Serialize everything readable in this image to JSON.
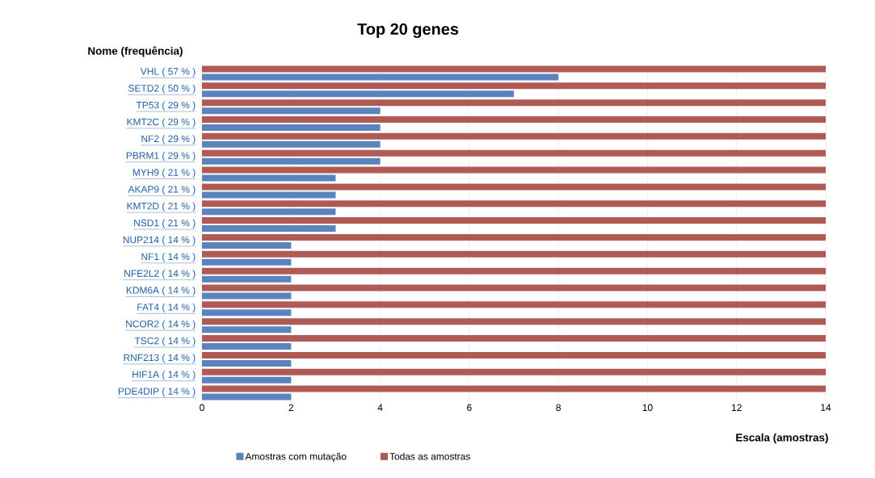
{
  "chart_data": {
    "type": "bar",
    "orientation": "horizontal",
    "title": "Top 20 genes",
    "ylabel": "Nome (frequência)",
    "xlabel": "Escala (amostras)",
    "categories": [
      "VHL ( 57 % )",
      "SETD2 ( 50 % )",
      "TP53 ( 29 % )",
      "KMT2C ( 29 % )",
      "NF2 ( 29 % )",
      "PBRM1 ( 29 % )",
      "MYH9 ( 21 % )",
      "AKAP9 ( 21 % )",
      "KMT2D ( 21 % )",
      "NSD1 ( 21 % )",
      "NUP214 ( 14 % )",
      "NF1 ( 14 % )",
      "NFE2L2 ( 14 % )",
      "KDM6A ( 14 % )",
      "FAT4 ( 14 % )",
      "NCOR2 ( 14 % )",
      "TSC2 ( 14 % )",
      "RNF213 ( 14 % )",
      "HIF1A ( 14 % )",
      "PDE4DIP ( 14 % )"
    ],
    "series": [
      {
        "name": "Amostras com mutação",
        "color": "#5b83bd",
        "values": [
          8,
          7,
          4,
          4,
          4,
          4,
          3,
          3,
          3,
          3,
          2,
          2,
          2,
          2,
          2,
          2,
          2,
          2,
          2,
          2
        ]
      },
      {
        "name": "Todas as amostras",
        "color": "#b05a55",
        "values": [
          14,
          14,
          14,
          14,
          14,
          14,
          14,
          14,
          14,
          14,
          14,
          14,
          14,
          14,
          14,
          14,
          14,
          14,
          14,
          14
        ]
      }
    ],
    "xlim": [
      0,
      14
    ],
    "xticks": [
      0,
      2,
      4,
      6,
      8,
      10,
      12,
      14
    ],
    "grid": "x",
    "legend": "bottom"
  }
}
